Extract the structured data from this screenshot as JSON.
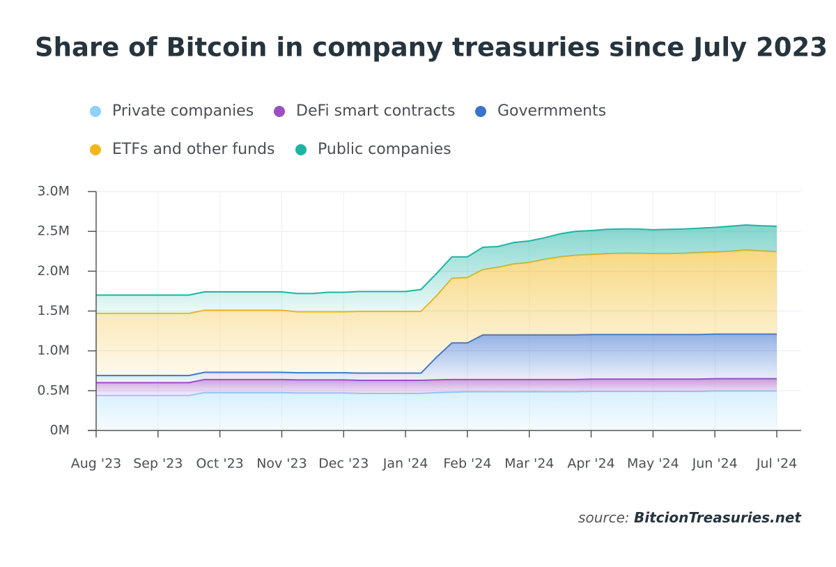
{
  "chart_data": {
    "type": "stacked-area",
    "title": "Share of Bitcoin in company treasuries since July 2023",
    "source_label": "source:",
    "source": "BitcionTreasuries.net",
    "categories": [
      "Aug '23",
      null,
      null,
      null,
      "Sep '23",
      null,
      null,
      null,
      "Oct '23",
      null,
      null,
      null,
      "Nov '23",
      null,
      null,
      null,
      "Dec '23",
      null,
      null,
      null,
      "Jan '24",
      null,
      null,
      null,
      "Feb '24",
      null,
      null,
      null,
      "Mar '24",
      null,
      null,
      null,
      "Apr '24",
      null,
      null,
      null,
      "May '24",
      null,
      null,
      null,
      "Jun '24",
      null,
      null,
      null,
      "Jul '24"
    ],
    "ylim": [
      0,
      3000000
    ],
    "yticks": [
      {
        "value": 0,
        "label": "0M"
      },
      {
        "value": 500000,
        "label": "0.5M"
      },
      {
        "value": 1000000,
        "label": "1.0M"
      },
      {
        "value": 1500000,
        "label": "1.5M"
      },
      {
        "value": 2000000,
        "label": "2.0M"
      },
      {
        "value": 2500000,
        "label": "2.5M"
      },
      {
        "value": 3000000,
        "label": "3.0M"
      }
    ],
    "grid": true,
    "series": [
      {
        "name": "Private companies",
        "color": "#8ed2f6",
        "values": [
          440000,
          440000,
          440000,
          440000,
          440000,
          440000,
          440000,
          475000,
          475000,
          475000,
          475000,
          475000,
          475000,
          470000,
          470000,
          470000,
          470000,
          465000,
          465000,
          465000,
          465000,
          465000,
          475000,
          480000,
          485000,
          485000,
          485000,
          485000,
          485000,
          485000,
          485000,
          485000,
          490000,
          490000,
          490000,
          490000,
          490000,
          490000,
          490000,
          490000,
          495000,
          495000,
          495000,
          495000,
          495000
        ]
      },
      {
        "name": "DeFi smart contracts",
        "color": "#9c4fc2",
        "values": [
          160000,
          160000,
          160000,
          160000,
          160000,
          160000,
          160000,
          165000,
          165000,
          165000,
          165000,
          165000,
          165000,
          165000,
          165000,
          165000,
          165000,
          165000,
          165000,
          165000,
          165000,
          165000,
          160000,
          160000,
          155000,
          155000,
          155000,
          155000,
          155000,
          155000,
          155000,
          155000,
          155000,
          155000,
          155000,
          155000,
          155000,
          155000,
          155000,
          155000,
          155000,
          155000,
          155000,
          155000,
          155000
        ]
      },
      {
        "name": "Govermments",
        "color": "#3c72cf",
        "values": [
          90000,
          90000,
          90000,
          90000,
          90000,
          90000,
          90000,
          90000,
          90000,
          90000,
          90000,
          90000,
          90000,
          90000,
          90000,
          90000,
          90000,
          90000,
          90000,
          90000,
          90000,
          90000,
          285000,
          460000,
          460000,
          560000,
          560000,
          560000,
          560000,
          560000,
          560000,
          560000,
          560000,
          560000,
          560000,
          560000,
          560000,
          560000,
          560000,
          560000,
          560000,
          560000,
          560000,
          560000,
          560000
        ]
      },
      {
        "name": "ETFs and other funds",
        "color": "#f1b81d",
        "values": [
          780000,
          780000,
          780000,
          780000,
          780000,
          780000,
          780000,
          780000,
          780000,
          780000,
          780000,
          780000,
          780000,
          765000,
          765000,
          765000,
          765000,
          775000,
          775000,
          775000,
          775000,
          775000,
          770000,
          810000,
          820000,
          820000,
          850000,
          890000,
          910000,
          950000,
          980000,
          1000000,
          1005000,
          1015000,
          1020000,
          1020000,
          1015000,
          1015000,
          1020000,
          1030000,
          1030000,
          1040000,
          1055000,
          1045000,
          1035000
        ]
      },
      {
        "name": "Public companies",
        "color": "#1db4a4",
        "values": [
          230000,
          230000,
          230000,
          230000,
          230000,
          230000,
          230000,
          230000,
          230000,
          230000,
          230000,
          230000,
          230000,
          230000,
          230000,
          245000,
          245000,
          250000,
          250000,
          250000,
          250000,
          275000,
          280000,
          270000,
          260000,
          280000,
          260000,
          270000,
          270000,
          270000,
          290000,
          300000,
          300000,
          305000,
          305000,
          305000,
          300000,
          305000,
          305000,
          305000,
          310000,
          315000,
          315000,
          315000,
          320000
        ]
      }
    ]
  }
}
